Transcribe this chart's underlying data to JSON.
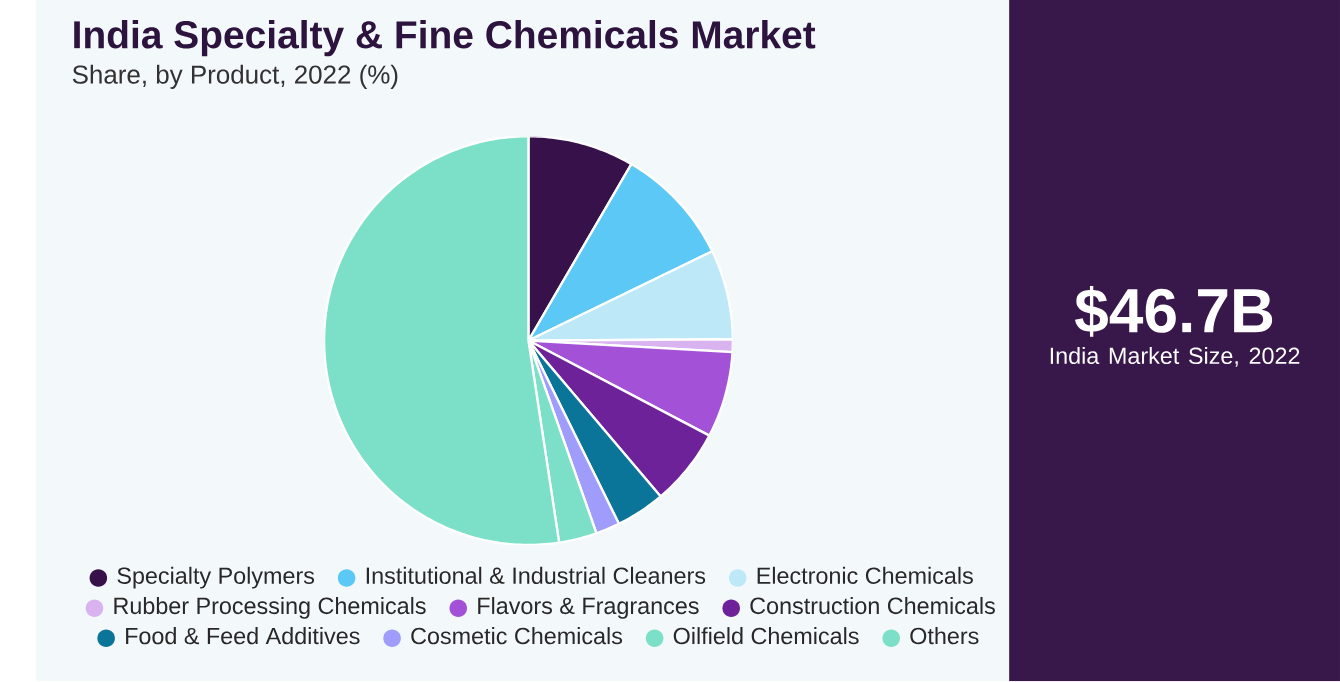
{
  "chart_data": {
    "type": "pie",
    "title": "India Specialty & Fine Chemicals Market",
    "subtitle": "Share, by Product, 2022 (%)",
    "categories": [
      "Specialty Polymers",
      "Institutional & Industrial Cleaners",
      "Electronic Chemicals",
      "Rubber Processing Chemicals",
      "Flavors & Fragrances",
      "Construction Chemicals",
      "Food & Feed Additives",
      "Cosmetic Chemicals",
      "Oilfield Chemicals",
      "Others"
    ],
    "values": [
      8.4,
      9.4,
      7.1,
      1,
      6.8,
      6.1,
      3.9,
      1.9,
      3,
      52.4
    ],
    "colors": [
      "#37114a",
      "#5bc8f5",
      "#bde8f7",
      "#d9b3f0",
      "#a352d8",
      "#6e2299",
      "#0a7599",
      "#a09cfb",
      "#7ce0c8",
      "#7ce0c8"
    ],
    "legend": "bottom",
    "annotations": [
      "$46.7B",
      "India Market Size, 2022"
    ]
  }
}
